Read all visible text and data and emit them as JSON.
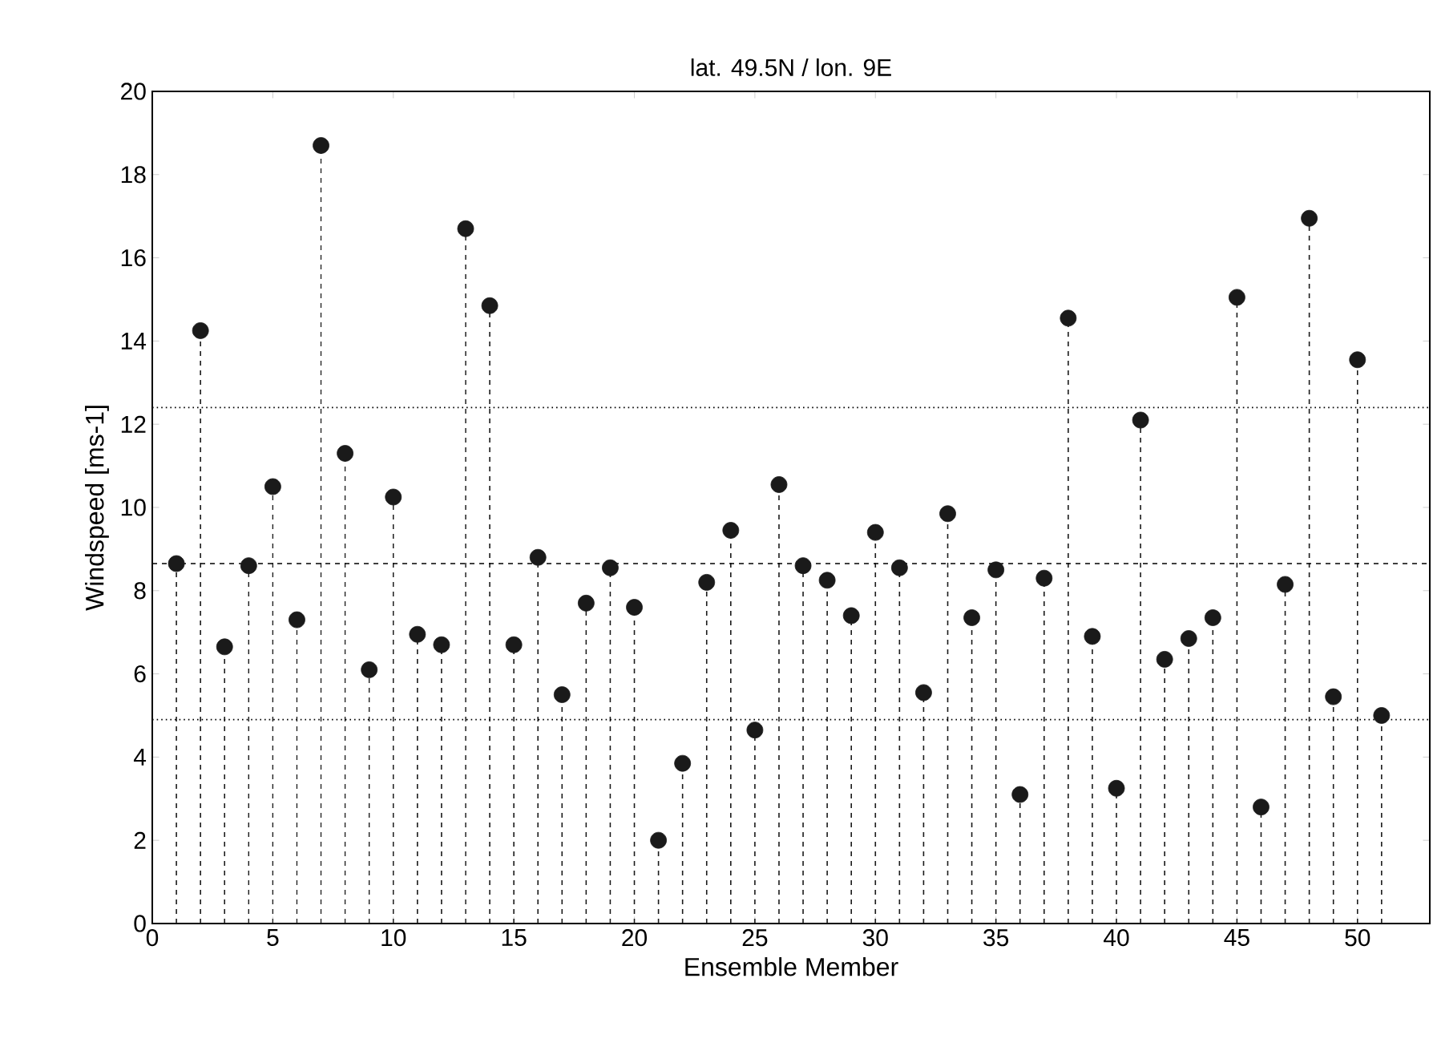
{
  "chart_data": {
    "type": "lollipop",
    "title": "lat. 49.5N / lon. 9E",
    "xlabel": "Ensemble Member",
    "ylabel": "Windspeed [ms-1]",
    "x": [
      1,
      2,
      3,
      4,
      5,
      6,
      7,
      8,
      9,
      10,
      11,
      12,
      13,
      14,
      15,
      16,
      17,
      18,
      19,
      20,
      21,
      22,
      23,
      24,
      25,
      26,
      27,
      28,
      29,
      30,
      31,
      32,
      33,
      34,
      35,
      36,
      37,
      38,
      39,
      40,
      41,
      42,
      43,
      44,
      45,
      46,
      47,
      48,
      49,
      50,
      51
    ],
    "values": [
      8.65,
      14.25,
      6.65,
      8.6,
      10.5,
      7.3,
      18.7,
      11.3,
      6.1,
      10.25,
      6.95,
      6.7,
      16.7,
      14.85,
      6.7,
      8.8,
      5.5,
      7.7,
      8.55,
      7.6,
      2.0,
      3.85,
      8.2,
      9.45,
      4.65,
      10.55,
      8.6,
      8.25,
      7.4,
      9.4,
      8.55,
      5.55,
      9.85,
      7.35,
      8.5,
      3.1,
      8.3,
      14.55,
      6.9,
      3.25,
      12.1,
      6.35,
      6.85,
      7.35,
      15.05,
      2.8,
      8.15,
      16.95,
      5.45,
      13.55,
      5.0
    ],
    "color": "#1a1a1a",
    "marker": "circle",
    "line_style": "dashed",
    "xlim": [
      0,
      53
    ],
    "xticks": [
      0,
      5,
      10,
      15,
      20,
      25,
      30,
      35,
      40,
      45,
      50
    ],
    "ylim": [
      0,
      20
    ],
    "yticks": [
      0,
      2,
      4,
      6,
      8,
      10,
      12,
      14,
      16,
      18,
      20
    ],
    "ref_lines": [
      {
        "axis": "y",
        "value": 12.4,
        "line_style": "dotted"
      },
      {
        "axis": "y",
        "value": 8.65,
        "line_style": "dashed"
      },
      {
        "axis": "y",
        "value": 4.9,
        "line_style": "dotted"
      }
    ]
  }
}
